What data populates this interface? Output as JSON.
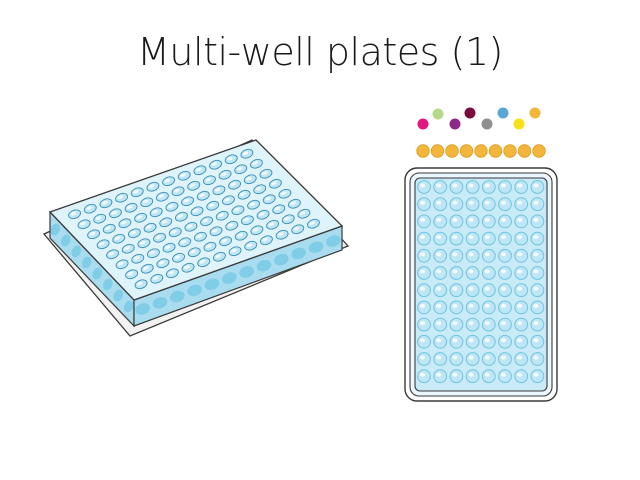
{
  "slide": {
    "title": "Multi-well plates (1)"
  },
  "colors": {
    "well_fill": "#bfe6f4",
    "well_rim": "#6fc3e0",
    "plate_side": "#a9dcef",
    "plate_outline": "#3a3a3a",
    "reagent_dots": [
      "#b7d98c",
      "#7a0b3d",
      "#5aa6d4",
      "#f2b63c",
      "#e0187f",
      "#8c2a8a",
      "#8f8f8f",
      "#f7e21a"
    ],
    "orange_row": "#f2b63c"
  },
  "diagram": {
    "plate_rows": 12,
    "plate_cols": 8,
    "orange_dot_count": 9
  }
}
